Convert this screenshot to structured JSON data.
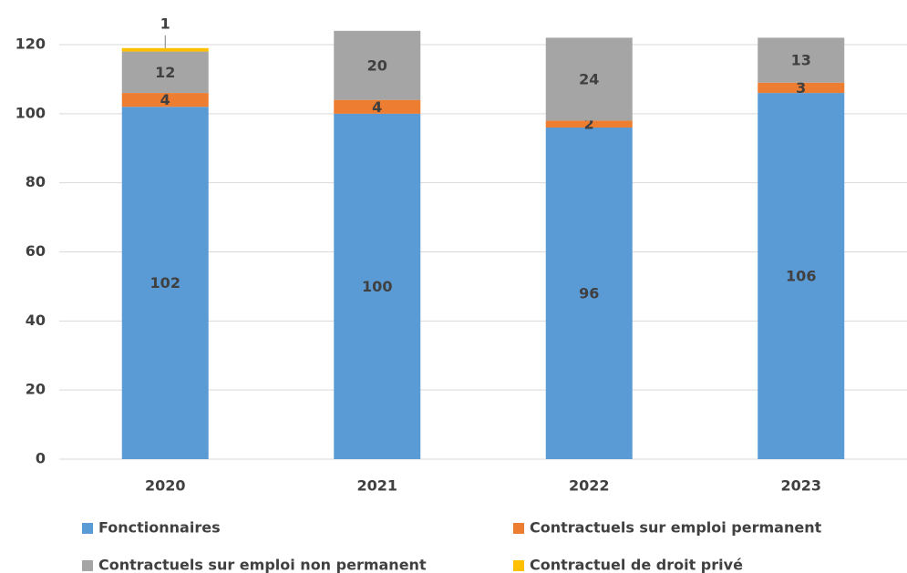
{
  "chart_data": {
    "type": "stacked_bar",
    "categories": [
      "2020",
      "2021",
      "2022",
      "2023"
    ],
    "series": [
      {
        "name": "Fonctionnaires",
        "color": "#5b9bd5",
        "values": [
          102,
          100,
          96,
          106
        ]
      },
      {
        "name": "Contractuels sur emploi permanent",
        "color": "#ed7d31",
        "values": [
          4,
          4,
          2,
          3
        ]
      },
      {
        "name": "Contractuels sur emploi non permanent",
        "color": "#a5a5a5",
        "values": [
          12,
          20,
          24,
          13
        ]
      },
      {
        "name": "Contractuel de droit privé",
        "color": "#ffc000",
        "values": [
          1,
          null,
          null,
          null
        ]
      }
    ],
    "ylim": [
      0,
      120
    ],
    "yticks": [
      0,
      20,
      40,
      60,
      80,
      100,
      120
    ],
    "grid": true,
    "legend": "bottom"
  }
}
